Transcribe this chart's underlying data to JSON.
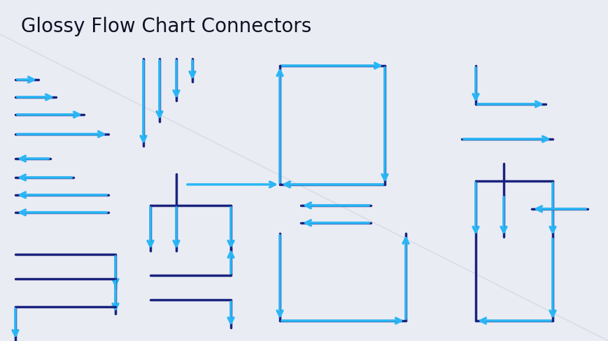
{
  "title": "Glossy Flow Chart Connectors",
  "title_fontsize": 20,
  "bg_color": "#eaecf4",
  "arrow_dark": "#1a237e",
  "arrow_light": "#29b6f6",
  "lw": 2.5
}
